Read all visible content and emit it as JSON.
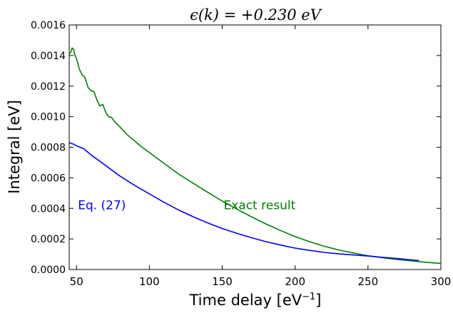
{
  "chart_data": {
    "type": "line",
    "title": "ϵ(k) = +0.230 eV",
    "xlabel": "Time delay [eV",
    "xlabel_sup": "−1",
    "xlabel_suffix": "]",
    "ylabel": "Integral [eV]",
    "xlim": [
      45,
      300
    ],
    "ylim": [
      0,
      0.0016
    ],
    "x_ticks": [
      50,
      100,
      150,
      200,
      250,
      300
    ],
    "x_tick_labels": [
      "50",
      "100",
      "150",
      "200",
      "250",
      "300"
    ],
    "y_ticks": [
      0,
      0.0002,
      0.0004,
      0.0006,
      0.0008,
      0.001,
      0.0012,
      0.0014,
      0.0016
    ],
    "y_tick_labels": [
      "0.0000",
      "0.0002",
      "0.0004",
      "0.0006",
      "0.0008",
      "0.0010",
      "0.0012",
      "0.0014",
      "0.0016"
    ],
    "grid": false,
    "series": [
      {
        "name": "Exact result",
        "color": "#008000",
        "x": [
          45,
          46,
          47,
          48,
          49,
          50,
          52,
          54,
          55,
          56,
          58,
          60,
          62,
          64,
          66,
          68,
          70,
          72,
          74,
          76,
          78,
          80,
          85,
          90,
          95,
          100,
          110,
          120,
          130,
          140,
          150,
          160,
          170,
          180,
          190,
          200,
          210,
          220,
          230,
          240,
          250,
          260,
          270,
          280,
          290,
          300
        ],
        "y": [
          0.00141,
          0.00142,
          0.00145,
          0.00144,
          0.0014,
          0.00138,
          0.00131,
          0.00127,
          0.001265,
          0.00125,
          0.00119,
          0.00117,
          0.001165,
          0.00111,
          0.00107,
          0.00108,
          0.00103,
          0.001,
          0.000995,
          0.00097,
          0.00095,
          0.00093,
          0.00088,
          0.00084,
          0.0008,
          0.000765,
          0.000695,
          0.000625,
          0.000565,
          0.000505,
          0.000448,
          0.000395,
          0.000345,
          0.000298,
          0.000255,
          0.000215,
          0.000182,
          0.000152,
          0.000128,
          0.000108,
          9e-05,
          7.7e-05,
          6.6e-05,
          5.6e-05,
          4.7e-05,
          4e-05
        ]
      },
      {
        "name": "Eq. (27)",
        "color": "#0000ff",
        "x": [
          45,
          48,
          50,
          55,
          60,
          70,
          80,
          90,
          100,
          110,
          120,
          130,
          140,
          150,
          160,
          170,
          180,
          190,
          200,
          210,
          220,
          230,
          240,
          250,
          260,
          270,
          280,
          285
        ],
        "y": [
          0.00083,
          0.00082,
          0.00081,
          0.00079,
          0.00075,
          0.00068,
          0.00061,
          0.00055,
          0.000495,
          0.00044,
          0.00039,
          0.000345,
          0.000305,
          0.000268,
          0.000237,
          0.000208,
          0.000182,
          0.00016,
          0.00014,
          0.000125,
          0.000112,
          0.000102,
          9.5e-05,
          8.8e-05,
          8e-05,
          7.2e-05,
          6.3e-05,
          5.8e-05
        ]
      }
    ],
    "annotations": [
      {
        "text": "Eq. (27)",
        "x": 50,
        "y": 0.0004,
        "color": "#0000ff"
      },
      {
        "text": "Exact result",
        "x": 150,
        "y": 0.0004,
        "color": "#008000"
      }
    ]
  }
}
